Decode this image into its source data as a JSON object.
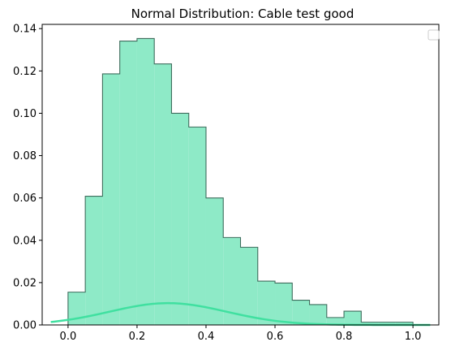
{
  "chart_data": {
    "type": "bar",
    "title": "Normal Distribution: Cable test good",
    "xlabel": "",
    "ylabel": "",
    "xlim": [
      -0.075,
      1.075
    ],
    "ylim": [
      0,
      0.142
    ],
    "grid": false,
    "legend": "top-right",
    "legend_entries": [],
    "x_ticks": [
      0.0,
      0.2,
      0.4,
      0.6,
      0.8,
      1.0
    ],
    "x_tick_labels": [
      "0.0",
      "0.2",
      "0.4",
      "0.6",
      "0.8",
      "1.0"
    ],
    "y_ticks": [
      0.0,
      0.02,
      0.04,
      0.06,
      0.08,
      0.1,
      0.12,
      0.14
    ],
    "y_tick_labels": [
      "0.00",
      "0.02",
      "0.04",
      "0.06",
      "0.08",
      "0.10",
      "0.12",
      "0.14"
    ],
    "bin_edges": [
      0.0,
      0.05,
      0.1,
      0.15,
      0.2,
      0.25,
      0.3,
      0.35,
      0.4,
      0.45,
      0.5,
      0.55,
      0.6,
      0.65,
      0.7,
      0.75,
      0.8,
      0.85,
      0.9,
      0.95,
      1.0
    ],
    "values": [
      0.0155,
      0.0608,
      0.1186,
      0.1341,
      0.1353,
      0.1233,
      0.1,
      0.0935,
      0.06,
      0.0413,
      0.0367,
      0.0207,
      0.0198,
      0.0117,
      0.0096,
      0.0035,
      0.0065,
      0.0013,
      0.0013,
      0.0013
    ],
    "curve": {
      "mean": 0.29,
      "std": 0.17,
      "scale": 0.0103,
      "x_range": [
        -0.05,
        1.05
      ]
    },
    "colors": {
      "bar_fill": "#8eeac7",
      "bar_edge": "#3f6d5d",
      "curve": "#40e0a0"
    }
  }
}
